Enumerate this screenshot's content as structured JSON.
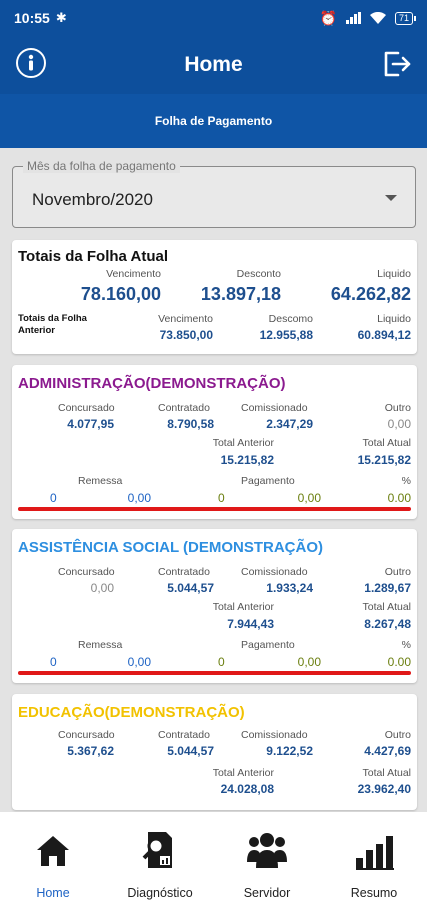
{
  "status": {
    "time": "10:55",
    "battery": "71"
  },
  "header": {
    "title": "Home",
    "subtitle": "Folha de Pagamento"
  },
  "month_select": {
    "label": "Mês da folha de pagamento",
    "value": "Novembro/2020"
  },
  "totals": {
    "title": "Totais da Folha Atual",
    "vencimento_label": "Vencimento",
    "vencimento": "78.160,00",
    "desconto_label": "Desconto",
    "desconto": "13.897,18",
    "liquido_label": "Liquido",
    "liquido": "64.262,82",
    "prev_title": "Totais da Folha Anterior",
    "prev_vencimento_label": "Vencimento",
    "prev_vencimento": "73.850,00",
    "prev_desconto_label": "Descomo",
    "prev_desconto": "12.955,88",
    "prev_liquido_label": "Liquido",
    "prev_liquido": "60.894,12"
  },
  "labels": {
    "concursado": "Concursado",
    "contratado": "Contratado",
    "comissionado": "Comissionado",
    "outro": "Outro",
    "total_anterior": "Total Anterior",
    "total_atual": "Total Atual",
    "remessa": "Remessa",
    "pagamento": "Pagamento",
    "percent": "%"
  },
  "departments": [
    {
      "title": "ADMINISTRAÇÃO(DEMONSTRAÇÃO)",
      "color": "#8b1a8f",
      "concursado": "4.077,95",
      "contratado": "8.790,58",
      "comissionado": "2.347,29",
      "outro": "0,00",
      "total_anterior": "15.215,82",
      "total_atual": "15.215,82",
      "remessa_qtd": "0",
      "remessa_valor": "0,00",
      "pagamento_qtd": "0",
      "pagamento_valor": "0,00",
      "percent": "0.00"
    },
    {
      "title": "ASSISTÊNCIA SOCIAL (DEMONSTRAÇÃO)",
      "color": "#2e8fe0",
      "concursado": "0,00",
      "contratado": "5.044,57",
      "comissionado": "1.933,24",
      "outro": "1.289,67",
      "total_anterior": "7.944,43",
      "total_atual": "8.267,48",
      "remessa_qtd": "0",
      "remessa_valor": "0,00",
      "pagamento_qtd": "0",
      "pagamento_valor": "0,00",
      "percent": "0.00"
    },
    {
      "title": "EDUCAÇÃO(DEMONSTRAÇÃO)",
      "color": "#f2c200",
      "concursado": "5.367,62",
      "contratado": "5.044,57",
      "comissionado": "9.122,52",
      "outro": "4.427,69",
      "total_anterior": "24.028,08",
      "total_atual": "23.962,40"
    }
  ],
  "nav": [
    {
      "label": "Home",
      "icon": "home-icon",
      "active": true
    },
    {
      "label": "Diagnóstico",
      "icon": "diagnostic-icon"
    },
    {
      "label": "Servidor",
      "icon": "users-icon"
    },
    {
      "label": "Resumo",
      "icon": "bar-chart-icon"
    }
  ],
  "colors": {
    "primary": "#0d4f9c",
    "accent_nav": "#1e63c4",
    "danger_line": "#e01818"
  }
}
